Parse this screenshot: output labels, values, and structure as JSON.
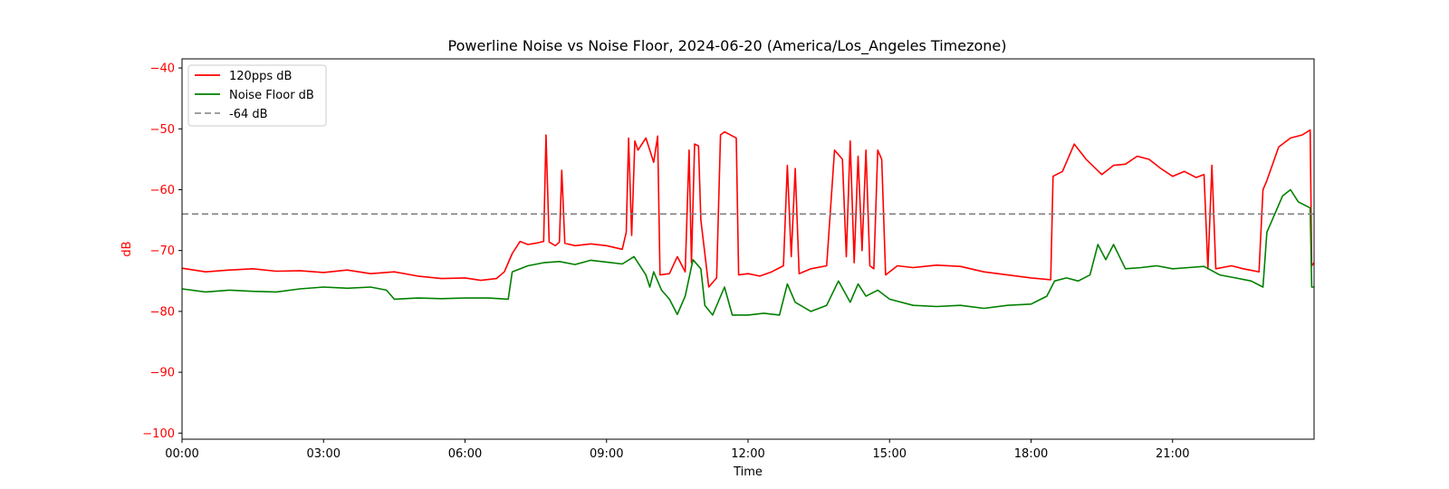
{
  "chart_data": {
    "type": "line",
    "title": "Powerline Noise vs Noise Floor, 2024-06-20 (America/Los_Angeles Timezone)",
    "xlabel": "Time",
    "ylabel": "dB",
    "x_ticks": [
      "00:00",
      "03:00",
      "06:00",
      "09:00",
      "12:00",
      "15:00",
      "18:00",
      "21:00"
    ],
    "y_ticks": [
      -40,
      -50,
      -60,
      -70,
      -80,
      -90,
      -100
    ],
    "xlim": [
      "00:00",
      "24:00"
    ],
    "ylim": [
      -101,
      -38.5
    ],
    "grid": false,
    "legend_position": "top-left",
    "ylabel_color": "#ff0000",
    "reference_line": {
      "name": "-64 dB",
      "y": -64,
      "color": "#808080",
      "style": "dashed"
    },
    "series": [
      {
        "name": "120pps dB",
        "color": "#ff0000",
        "points": [
          [
            "00:00",
            -72.9
          ],
          [
            "00:30",
            -73.5
          ],
          [
            "01:00",
            -73.2
          ],
          [
            "01:30",
            -73.0
          ],
          [
            "02:00",
            -73.4
          ],
          [
            "02:30",
            -73.3
          ],
          [
            "03:00",
            -73.6
          ],
          [
            "03:30",
            -73.2
          ],
          [
            "04:00",
            -73.8
          ],
          [
            "04:30",
            -73.5
          ],
          [
            "05:00",
            -74.2
          ],
          [
            "05:30",
            -74.6
          ],
          [
            "06:00",
            -74.5
          ],
          [
            "06:20",
            -74.9
          ],
          [
            "06:40",
            -74.6
          ],
          [
            "06:50",
            -73.5
          ],
          [
            "07:00",
            -70.5
          ],
          [
            "07:10",
            -68.5
          ],
          [
            "07:20",
            -69.0
          ],
          [
            "07:30",
            -68.8
          ],
          [
            "07:40",
            -68.5
          ],
          [
            "07:43",
            -51.0
          ],
          [
            "07:47",
            -68.6
          ],
          [
            "07:55",
            -69.2
          ],
          [
            "08:00",
            -68.6
          ],
          [
            "08:03",
            -56.8
          ],
          [
            "08:07",
            -68.8
          ],
          [
            "08:20",
            -69.2
          ],
          [
            "08:40",
            -68.9
          ],
          [
            "09:00",
            -69.2
          ],
          [
            "09:20",
            -69.8
          ],
          [
            "09:25",
            -67.0
          ],
          [
            "09:28",
            -51.5
          ],
          [
            "09:32",
            -67.5
          ],
          [
            "09:36",
            -52.0
          ],
          [
            "09:40",
            -53.5
          ],
          [
            "09:50",
            -51.5
          ],
          [
            "10:00",
            -55.5
          ],
          [
            "10:05",
            -51.2
          ],
          [
            "10:08",
            -74.0
          ],
          [
            "10:20",
            -73.8
          ],
          [
            "10:30",
            -71.0
          ],
          [
            "10:40",
            -73.5
          ],
          [
            "10:45",
            -53.5
          ],
          [
            "10:48",
            -72.0
          ],
          [
            "10:52",
            -52.5
          ],
          [
            "10:57",
            -52.8
          ],
          [
            "11:00",
            -65.0
          ],
          [
            "11:05",
            -70.5
          ],
          [
            "11:10",
            -76.0
          ],
          [
            "11:20",
            -74.5
          ],
          [
            "11:25",
            -51.0
          ],
          [
            "11:30",
            -50.5
          ],
          [
            "11:45",
            -51.5
          ],
          [
            "11:48",
            -74.0
          ],
          [
            "12:00",
            -73.8
          ],
          [
            "12:15",
            -74.2
          ],
          [
            "12:30",
            -73.5
          ],
          [
            "12:45",
            -72.5
          ],
          [
            "12:50",
            -56.0
          ],
          [
            "12:55",
            -71.0
          ],
          [
            "13:00",
            -56.5
          ],
          [
            "13:05",
            -73.8
          ],
          [
            "13:20",
            -73.0
          ],
          [
            "13:40",
            -72.5
          ],
          [
            "13:50",
            -53.5
          ],
          [
            "14:00",
            -55.0
          ],
          [
            "14:05",
            -71.0
          ],
          [
            "14:10",
            -52.0
          ],
          [
            "14:15",
            -72.0
          ],
          [
            "14:20",
            -54.5
          ],
          [
            "14:25",
            -70.0
          ],
          [
            "14:30",
            -53.5
          ],
          [
            "14:35",
            -72.5
          ],
          [
            "14:40",
            -73.0
          ],
          [
            "14:45",
            -53.5
          ],
          [
            "14:50",
            -55.0
          ],
          [
            "14:55",
            -74.0
          ],
          [
            "15:10",
            -72.5
          ],
          [
            "15:30",
            -72.8
          ],
          [
            "16:00",
            -72.4
          ],
          [
            "16:30",
            -72.6
          ],
          [
            "17:00",
            -73.5
          ],
          [
            "17:30",
            -74.0
          ],
          [
            "18:00",
            -74.5
          ],
          [
            "18:25",
            -74.8
          ],
          [
            "18:28",
            -57.8
          ],
          [
            "18:40",
            -57.0
          ],
          [
            "18:55",
            -52.5
          ],
          [
            "19:10",
            -55.0
          ],
          [
            "19:30",
            -57.5
          ],
          [
            "19:45",
            -56.0
          ],
          [
            "20:00",
            -55.8
          ],
          [
            "20:15",
            -54.5
          ],
          [
            "20:30",
            -55.0
          ],
          [
            "20:45",
            -56.5
          ],
          [
            "21:00",
            -57.8
          ],
          [
            "21:15",
            -57.0
          ],
          [
            "21:30",
            -58.0
          ],
          [
            "21:40",
            -57.5
          ],
          [
            "21:45",
            -73.0
          ],
          [
            "21:50",
            -56.0
          ],
          [
            "21:55",
            -73.0
          ],
          [
            "22:15",
            -72.5
          ],
          [
            "22:30",
            -73.0
          ],
          [
            "22:50",
            -73.5
          ],
          [
            "22:55",
            -60.0
          ],
          [
            "23:00",
            -58.5
          ],
          [
            "23:15",
            -53.0
          ],
          [
            "23:30",
            -51.5
          ],
          [
            "23:45",
            -51.0
          ],
          [
            "23:55",
            -50.2
          ],
          [
            "23:57",
            -72.5
          ],
          [
            "24:00",
            -72.0
          ]
        ]
      },
      {
        "name": "Noise Floor dB",
        "color": "#008000",
        "points": [
          [
            "00:00",
            -76.3
          ],
          [
            "00:30",
            -76.8
          ],
          [
            "01:00",
            -76.5
          ],
          [
            "01:30",
            -76.7
          ],
          [
            "02:00",
            -76.8
          ],
          [
            "02:30",
            -76.3
          ],
          [
            "03:00",
            -76.0
          ],
          [
            "03:30",
            -76.2
          ],
          [
            "04:00",
            -76.0
          ],
          [
            "04:20",
            -76.5
          ],
          [
            "04:30",
            -78.0
          ],
          [
            "05:00",
            -77.8
          ],
          [
            "05:30",
            -77.9
          ],
          [
            "06:00",
            -77.8
          ],
          [
            "06:30",
            -77.8
          ],
          [
            "06:55",
            -78.0
          ],
          [
            "07:00",
            -73.5
          ],
          [
            "07:20",
            -72.5
          ],
          [
            "07:40",
            -72.0
          ],
          [
            "08:00",
            -71.8
          ],
          [
            "08:20",
            -72.3
          ],
          [
            "08:40",
            -71.6
          ],
          [
            "09:00",
            -71.9
          ],
          [
            "09:20",
            -72.2
          ],
          [
            "09:35",
            -71.0
          ],
          [
            "09:50",
            -74.0
          ],
          [
            "09:55",
            -76.0
          ],
          [
            "10:00",
            -73.5
          ],
          [
            "10:10",
            -76.5
          ],
          [
            "10:20",
            -78.0
          ],
          [
            "10:30",
            -80.5
          ],
          [
            "10:40",
            -77.5
          ],
          [
            "10:50",
            -71.5
          ],
          [
            "11:00",
            -73.0
          ],
          [
            "11:05",
            -79.0
          ],
          [
            "11:15",
            -80.6
          ],
          [
            "11:30",
            -76.0
          ],
          [
            "11:40",
            -80.6
          ],
          [
            "12:00",
            -80.6
          ],
          [
            "12:20",
            -80.3
          ],
          [
            "12:40",
            -80.6
          ],
          [
            "12:50",
            -75.5
          ],
          [
            "13:00",
            -78.5
          ],
          [
            "13:20",
            -80.0
          ],
          [
            "13:40",
            -79.0
          ],
          [
            "13:55",
            -75.0
          ],
          [
            "14:10",
            -78.5
          ],
          [
            "14:20",
            -75.5
          ],
          [
            "14:30",
            -77.5
          ],
          [
            "14:45",
            -76.5
          ],
          [
            "15:00",
            -78.0
          ],
          [
            "15:30",
            -79.0
          ],
          [
            "16:00",
            -79.2
          ],
          [
            "16:30",
            -79.0
          ],
          [
            "17:00",
            -79.5
          ],
          [
            "17:30",
            -79.0
          ],
          [
            "18:00",
            -78.8
          ],
          [
            "18:20",
            -77.5
          ],
          [
            "18:30",
            -75.0
          ],
          [
            "18:45",
            -74.5
          ],
          [
            "19:00",
            -75.0
          ],
          [
            "19:15",
            -74.0
          ],
          [
            "19:25",
            -69.0
          ],
          [
            "19:35",
            -71.5
          ],
          [
            "19:45",
            -69.0
          ],
          [
            "20:00",
            -73.0
          ],
          [
            "20:20",
            -72.8
          ],
          [
            "20:40",
            -72.5
          ],
          [
            "21:00",
            -73.0
          ],
          [
            "21:20",
            -72.8
          ],
          [
            "21:40",
            -72.6
          ],
          [
            "22:00",
            -74.0
          ],
          [
            "22:20",
            -74.5
          ],
          [
            "22:40",
            -75.0
          ],
          [
            "22:55",
            -76.0
          ],
          [
            "23:00",
            -67.0
          ],
          [
            "23:10",
            -64.0
          ],
          [
            "23:20",
            -61.0
          ],
          [
            "23:30",
            -60.0
          ],
          [
            "23:40",
            -62.0
          ],
          [
            "23:55",
            -63.0
          ],
          [
            "23:57",
            -76.0
          ],
          [
            "24:00",
            -76.0
          ]
        ]
      }
    ]
  }
}
